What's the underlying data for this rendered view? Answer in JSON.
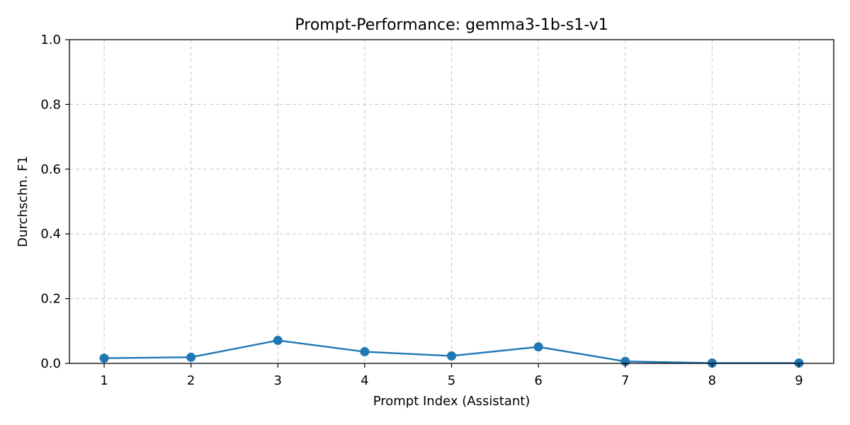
{
  "chart_data": {
    "type": "line",
    "title": "Prompt-Performance: gemma3-1b-s1-v1",
    "xlabel": "Prompt Index (Assistant)",
    "ylabel": "Durchschn. F1",
    "x": [
      1,
      2,
      3,
      4,
      5,
      6,
      7,
      8,
      9
    ],
    "xlim": [
      0.6,
      9.4
    ],
    "ylim": [
      0.0,
      1.0
    ],
    "x_ticks": [
      "1",
      "2",
      "3",
      "4",
      "5",
      "6",
      "7",
      "8",
      "9"
    ],
    "y_ticks": [
      "0.0",
      "0.2",
      "0.4",
      "0.6",
      "0.8",
      "1.0"
    ],
    "y_tick_values": [
      0.0,
      0.2,
      0.4,
      0.6,
      0.8,
      1.0
    ],
    "grid": true,
    "grid_style": "dashed",
    "series": [
      {
        "values": [
          0.016,
          0.019,
          0.071,
          0.036,
          0.023,
          0.051,
          0.006,
          0.001,
          0.001
        ],
        "color": "#1f77b4",
        "marker": "circle"
      }
    ]
  }
}
